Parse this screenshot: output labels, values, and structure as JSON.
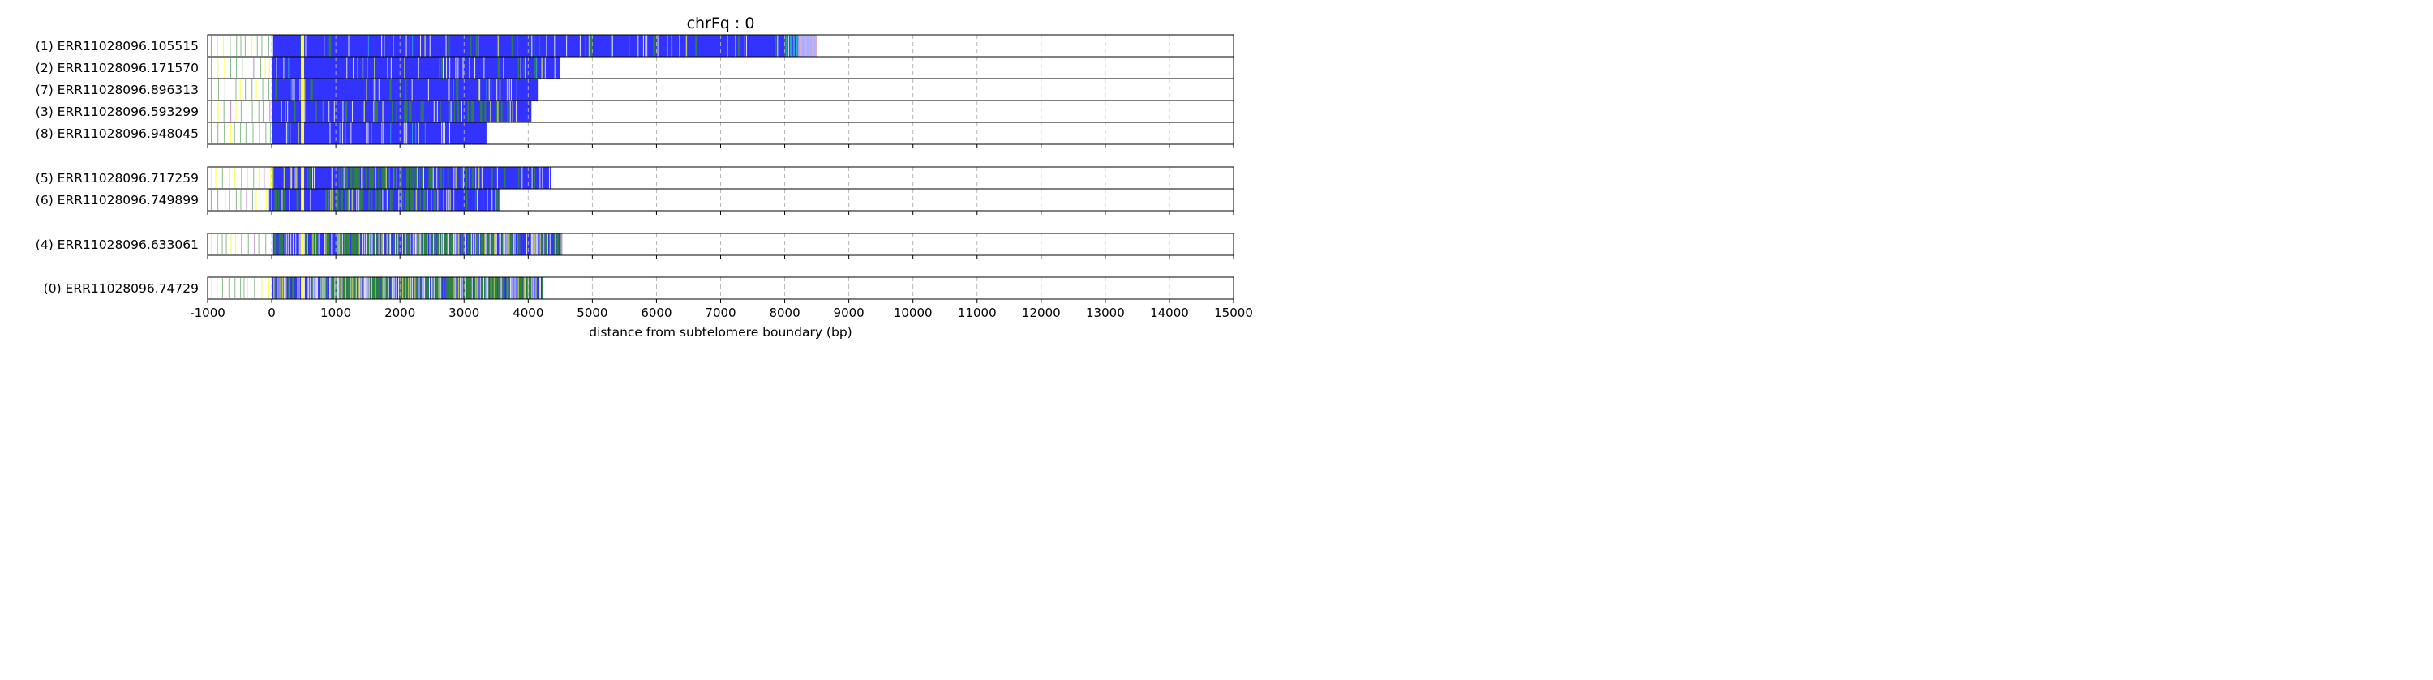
{
  "chart_data": {
    "type": "bar",
    "title": "chrFq : 0",
    "xlabel": "distance from subtelomere boundary (bp)",
    "xlim": [
      -1000,
      15000
    ],
    "xticks": [
      -1000,
      0,
      1000,
      2000,
      3000,
      4000,
      5000,
      6000,
      7000,
      8000,
      9000,
      10000,
      11000,
      12000,
      13000,
      14000,
      15000
    ],
    "grid": "vertical dashed",
    "boundary_line_x": 0,
    "colors": {
      "telomere_repeat": "#3333ff",
      "variant_green": "#2e8b2e",
      "variant_yellow": "#ffff33",
      "variant_cyan": "#33aacc",
      "variant_red": "#dd3333",
      "subtelomere_marks": "#88bb88"
    },
    "groups": [
      {
        "reads": [
          {
            "label": "(1) ERR11028096.105515",
            "end": 8500
          },
          {
            "label": "(2) ERR11028096.171570",
            "end": 4500
          },
          {
            "label": "(7) ERR11028096.896313",
            "end": 4150
          },
          {
            "label": "(3) ERR11028096.593299",
            "end": 4050
          },
          {
            "label": "(8) ERR11028096.948045",
            "end": 3350
          }
        ]
      },
      {
        "reads": [
          {
            "label": "(5) ERR11028096.717259",
            "end": 4350
          },
          {
            "label": "(6) ERR11028096.749899",
            "end": 3550
          }
        ]
      },
      {
        "reads": [
          {
            "label": "(4) ERR11028096.633061",
            "end": 4530
          }
        ]
      },
      {
        "reads": [
          {
            "label": "(0) ERR11028096.74729",
            "end": 4230
          }
        ]
      }
    ]
  }
}
